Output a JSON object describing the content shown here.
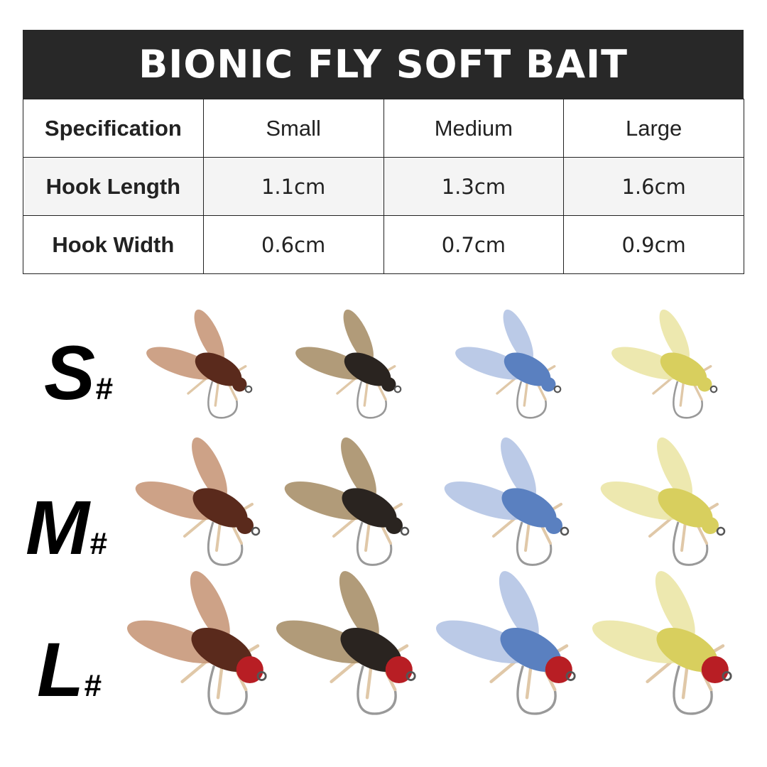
{
  "title": "BIONIC FLY SOFT BAIT",
  "table": {
    "header": [
      "Specification",
      "Small",
      "Medium",
      "Large"
    ],
    "rows": [
      {
        "label": "Hook Length",
        "values": [
          "1.1cm",
          "1.3cm",
          "1.6cm"
        ]
      },
      {
        "label": "Hook Width",
        "values": [
          "0.6cm",
          "0.7cm",
          "0.9cm"
        ]
      }
    ]
  },
  "sizes": [
    {
      "letter": "S",
      "suffix": "#"
    },
    {
      "letter": "M",
      "suffix": "#"
    },
    {
      "letter": "L",
      "suffix": "#"
    }
  ],
  "fly_colors": [
    {
      "name": "brown",
      "body": "#5a2a1c",
      "wing": "#c8987a"
    },
    {
      "name": "black",
      "body": "#2a2420",
      "wing": "#a8906a"
    },
    {
      "name": "blue",
      "body": "#5a80c0",
      "wing": "#b4c4e4"
    },
    {
      "name": "yellow",
      "body": "#d8cf5e",
      "wing": "#ebe6a6"
    }
  ],
  "head_color_large": "#b81e24"
}
